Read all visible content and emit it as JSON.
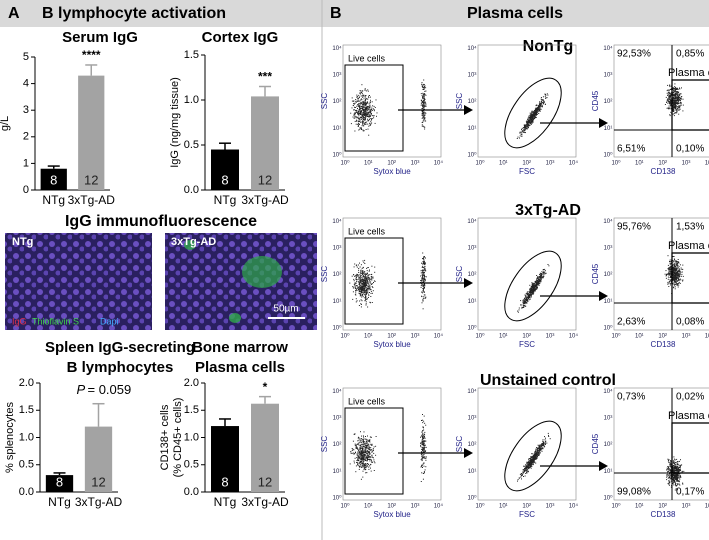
{
  "chart_data": [
    {
      "type": "bar",
      "title": "Serum IgG",
      "ylabel": "g/L",
      "categories": [
        "NTg",
        "3xTg-AD"
      ],
      "values": [
        0.8,
        4.3
      ],
      "errors": [
        0.1,
        0.4
      ],
      "n_labels": [
        "8",
        "12"
      ],
      "colors": [
        "#000000",
        "#a3a3a3"
      ],
      "significance": "****",
      "ylim": [
        0,
        5
      ],
      "yticks": [
        0,
        1,
        2,
        3,
        4,
        5
      ]
    },
    {
      "type": "bar",
      "title": "Cortex IgG",
      "ylabel": "IgG (ng/mg tissue)",
      "categories": [
        "NTg",
        "3xTg-AD"
      ],
      "values": [
        0.45,
        1.04
      ],
      "errors": [
        0.07,
        0.11
      ],
      "n_labels": [
        "8",
        "12"
      ],
      "colors": [
        "#000000",
        "#a3a3a3"
      ],
      "significance": "***",
      "ylim": [
        0,
        1.5
      ],
      "yticks": [
        {
          "value": 0,
          "label": "0.0"
        },
        0.5,
        {
          "value": 1,
          "label": "1.0"
        },
        1.5
      ]
    },
    {
      "type": "bar",
      "title": "Spleen IgG-secreting",
      "subtitle": "B lymphocytes",
      "ylabel": "% splenocytes",
      "categories": [
        "NTg",
        "3xTg-AD"
      ],
      "values": [
        0.31,
        1.2
      ],
      "errors": [
        0.04,
        0.42
      ],
      "n_labels": [
        "8",
        "12"
      ],
      "colors": [
        "#000000",
        "#a3a3a3"
      ],
      "annotation_symbol": "P",
      "annotation_value": "= 0.059",
      "ylim": [
        0,
        2
      ],
      "yticks": [
        {
          "value": 0,
          "label": "0.0"
        },
        0.5,
        {
          "value": 1,
          "label": "1.0"
        },
        1.5,
        {
          "value": 2,
          "label": "2.0"
        }
      ]
    },
    {
      "type": "bar",
      "title": "Bone marrow",
      "subtitle": "Plasma cells",
      "ylabel": "CD138+ cells",
      "ylabel2": "(% CD45+ cells)",
      "categories": [
        "NTg",
        "3xTg-AD"
      ],
      "values": [
        1.21,
        1.62
      ],
      "errors": [
        0.13,
        0.13
      ],
      "n_labels": [
        "8",
        "12"
      ],
      "colors": [
        "#000000",
        "#a3a3a3"
      ],
      "significance": "*",
      "ylim": [
        0,
        2
      ],
      "yticks": [
        {
          "value": 0,
          "label": "0.0"
        },
        0.5,
        {
          "value": 1,
          "label": "1.0"
        },
        1.5,
        {
          "value": 2,
          "label": "2.0"
        }
      ]
    }
  ],
  "panel_a": {
    "letter": "A",
    "title": "B lymphocyte activation",
    "if_title": "IgG immunofluorescence",
    "images": [
      "NTg",
      "3xTg-AD"
    ],
    "stain_labels": [
      "IgG",
      "Thioflavin S",
      "Dapi"
    ],
    "scale_bar": "50µm"
  },
  "panel_b": {
    "letter": "B",
    "title": "Plasma cells",
    "log_ticks": [
      "10⁰",
      "10¹",
      "10²",
      "10³",
      "10⁴"
    ],
    "axis_labels": {
      "ssc": "SSC",
      "sytox": "Sytox blue",
      "fsc": "FSC",
      "cd45": "CD45",
      "cd138": "CD138"
    },
    "gate_live": "Live cells",
    "gate_plasma": "Plasma cells",
    "rows": [
      {
        "title": "NonTg",
        "quadrants": [
          "92,53%",
          "0,85%",
          "6,51%",
          "0,10%"
        ]
      },
      {
        "title": "3xTg-AD",
        "quadrants": [
          "95,76%",
          "1,53%",
          "2,63%",
          "0,08%"
        ]
      },
      {
        "title": "Unstained control",
        "quadrants": [
          "0,73%",
          "0,02%",
          "99,08%",
          "0,17%"
        ]
      }
    ]
  }
}
